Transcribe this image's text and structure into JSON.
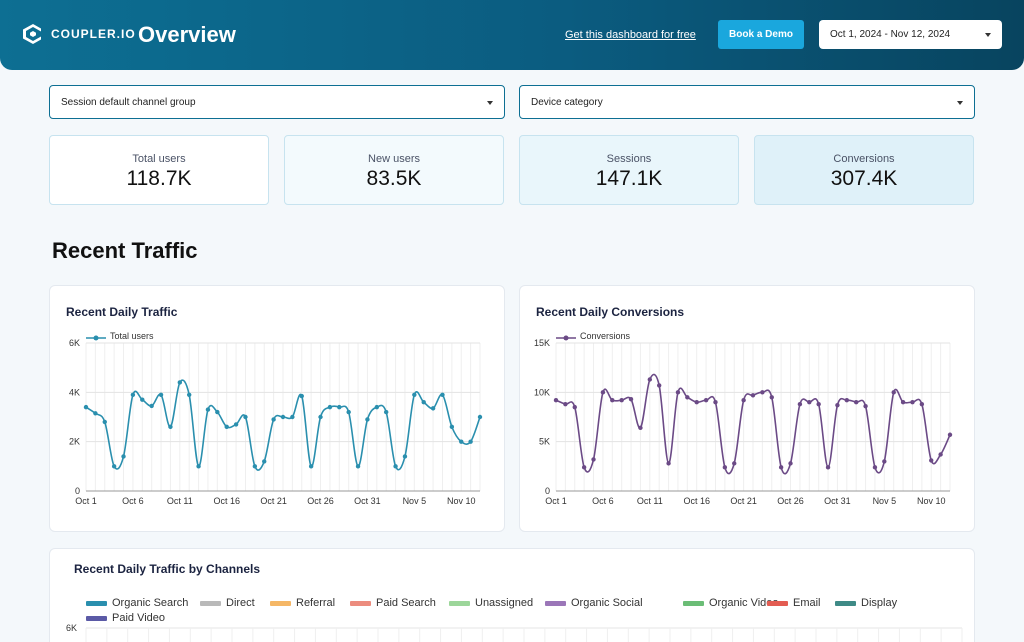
{
  "header": {
    "logo_text": "COUPLER.IO",
    "title": "Overview",
    "get_dashboard_link": "Get this dashboard for free",
    "book_demo_label": "Book a Demo",
    "date_range": "Oct 1, 2024 - Nov 12, 2024"
  },
  "filters": {
    "channel_group": "Session default channel group",
    "device_category": "Device category"
  },
  "kpis": [
    {
      "label": "Total users",
      "value": "118.7K"
    },
    {
      "label": "New users",
      "value": "83.5K"
    },
    {
      "label": "Sessions",
      "value": "147.1K"
    },
    {
      "label": "Conversions",
      "value": "307.4K"
    }
  ],
  "section_title": "Recent Traffic",
  "colors": {
    "header_start": "#0d6f93",
    "header_end": "#08445f",
    "accent_button": "#1aa7dd",
    "traffic_line": "#2a8fae",
    "conversions_line": "#6b4a86"
  },
  "chart_data": [
    {
      "type": "line",
      "title": "Recent Daily Traffic",
      "series": [
        {
          "name": "Total users",
          "values": [
            3400,
            3150,
            2800,
            1000,
            1400,
            3900,
            3700,
            3450,
            3900,
            2600,
            4400,
            3900,
            1000,
            3300,
            3200,
            2600,
            2700,
            3000,
            1000,
            1200,
            2900,
            3000,
            3000,
            3850,
            1000,
            3000,
            3400,
            3400,
            3200,
            1000,
            2900,
            3400,
            3200,
            1000,
            1400,
            3900,
            3600,
            3350,
            3900,
            2600,
            2000,
            2000,
            3000
          ]
        }
      ],
      "x_ticks": [
        "Oct 1",
        "Oct 6",
        "Oct 11",
        "Oct 16",
        "Oct 21",
        "Oct 26",
        "Oct 31",
        "Nov 5",
        "Nov 10"
      ],
      "y_ticks": [
        "0",
        "2K",
        "4K",
        "6K"
      ],
      "ylim": [
        0,
        6000
      ]
    },
    {
      "type": "line",
      "title": "Recent Daily Conversions",
      "series": [
        {
          "name": "Conversions",
          "values": [
            9200,
            8800,
            8500,
            2400,
            3200,
            10000,
            9200,
            9200,
            9300,
            6400,
            11300,
            10700,
            2800,
            10000,
            9500,
            9000,
            9200,
            9000,
            2400,
            2800,
            9200,
            9700,
            10000,
            9500,
            2400,
            2800,
            8800,
            9000,
            8800,
            2400,
            8700,
            9200,
            9000,
            8600,
            2400,
            3000,
            10000,
            9000,
            9000,
            8800,
            3100,
            3700,
            5700
          ]
        }
      ],
      "x_ticks": [
        "Oct 1",
        "Oct 6",
        "Oct 11",
        "Oct 16",
        "Oct 21",
        "Oct 26",
        "Oct 31",
        "Nov 5",
        "Nov 10"
      ],
      "y_ticks": [
        "0",
        "5K",
        "10K",
        "15K"
      ],
      "ylim": [
        0,
        15000
      ]
    },
    {
      "type": "area",
      "title": "Recent Daily Traffic by Channels",
      "legend": [
        {
          "name": "Organic Search",
          "color": "#2a8fae"
        },
        {
          "name": "Direct",
          "color": "#b9b9b9"
        },
        {
          "name": "Referral",
          "color": "#f5b766"
        },
        {
          "name": "Paid Search",
          "color": "#ec8c7e"
        },
        {
          "name": "Unassigned",
          "color": "#9cd69a"
        },
        {
          "name": "Organic Social",
          "color": "#9b76b8"
        },
        {
          "name": "Organic Video",
          "color": "#6bbd76"
        },
        {
          "name": "Email",
          "color": "#e35c52"
        },
        {
          "name": "Display",
          "color": "#3e8a86"
        },
        {
          "name": "Paid Video",
          "color": "#5b5aa6"
        }
      ],
      "y_ticks": [
        "6K"
      ]
    }
  ]
}
